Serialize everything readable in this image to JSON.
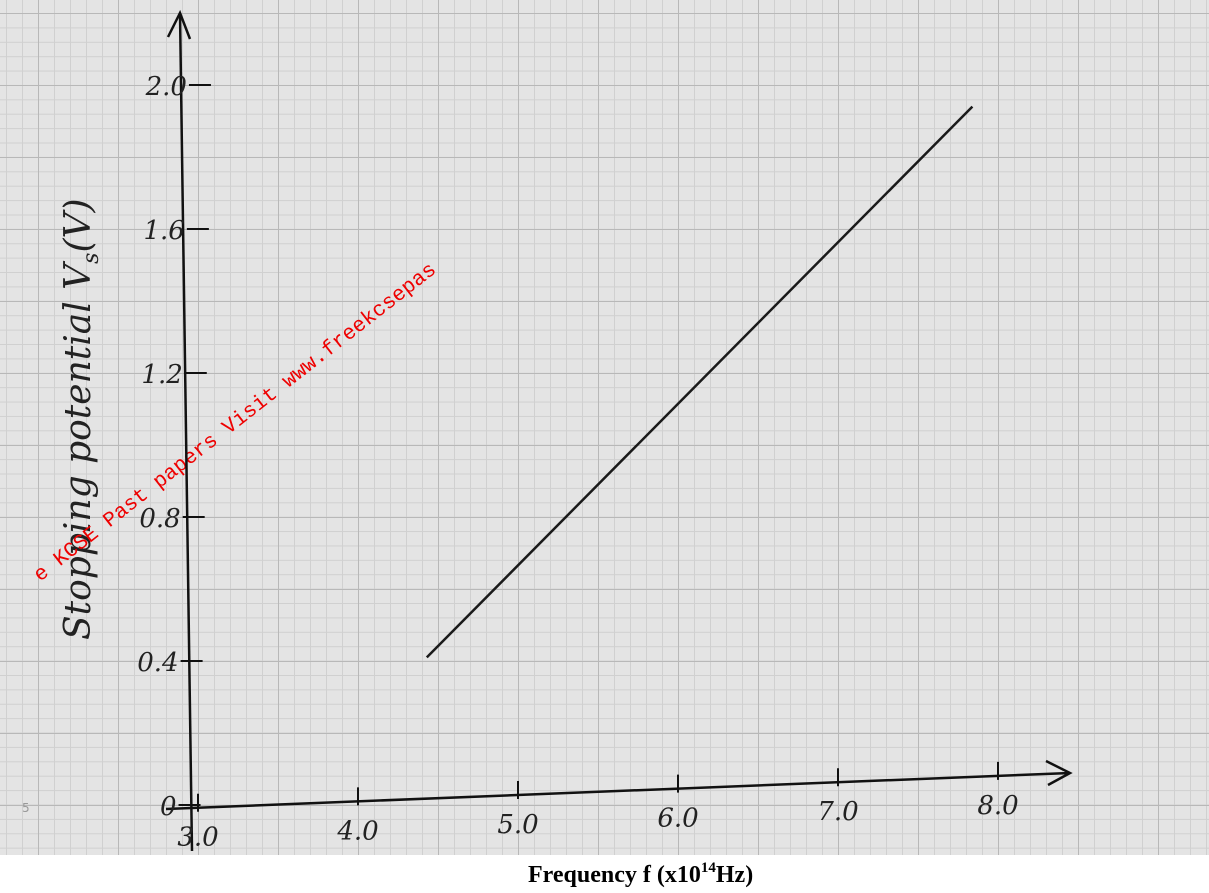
{
  "chart_data": {
    "type": "line",
    "watermark": "e KCSE Past papers Visit www.freekcsepas",
    "margin_number": "5",
    "ylabel": {
      "text": "Stopping potential V",
      "sub": "s",
      "suffix": "(V)"
    },
    "xlabel": {
      "text": "Frequency f (x10",
      "sup": "14",
      "suffix": "Hz)"
    },
    "x": [
      4.43,
      7.84
    ],
    "series": [
      {
        "values": [
          0.41,
          1.94
        ],
        "color": "#1a1a1a"
      }
    ],
    "xlim": [
      2.8,
      8.4
    ],
    "ylim": [
      -0.1,
      2.2
    ],
    "xticks": [
      {
        "value": 3,
        "label": "3.0"
      },
      {
        "value": 4,
        "label": "4.0"
      },
      {
        "value": 5,
        "label": "5.0"
      },
      {
        "value": 6,
        "label": "6.0"
      },
      {
        "value": 7,
        "label": "7.0"
      },
      {
        "value": 8,
        "label": "8.0"
      }
    ],
    "yticks": [
      0,
      0.4,
      0.8,
      1.2,
      1.6,
      {
        "value": 2,
        "label": "2.0"
      }
    ]
  }
}
